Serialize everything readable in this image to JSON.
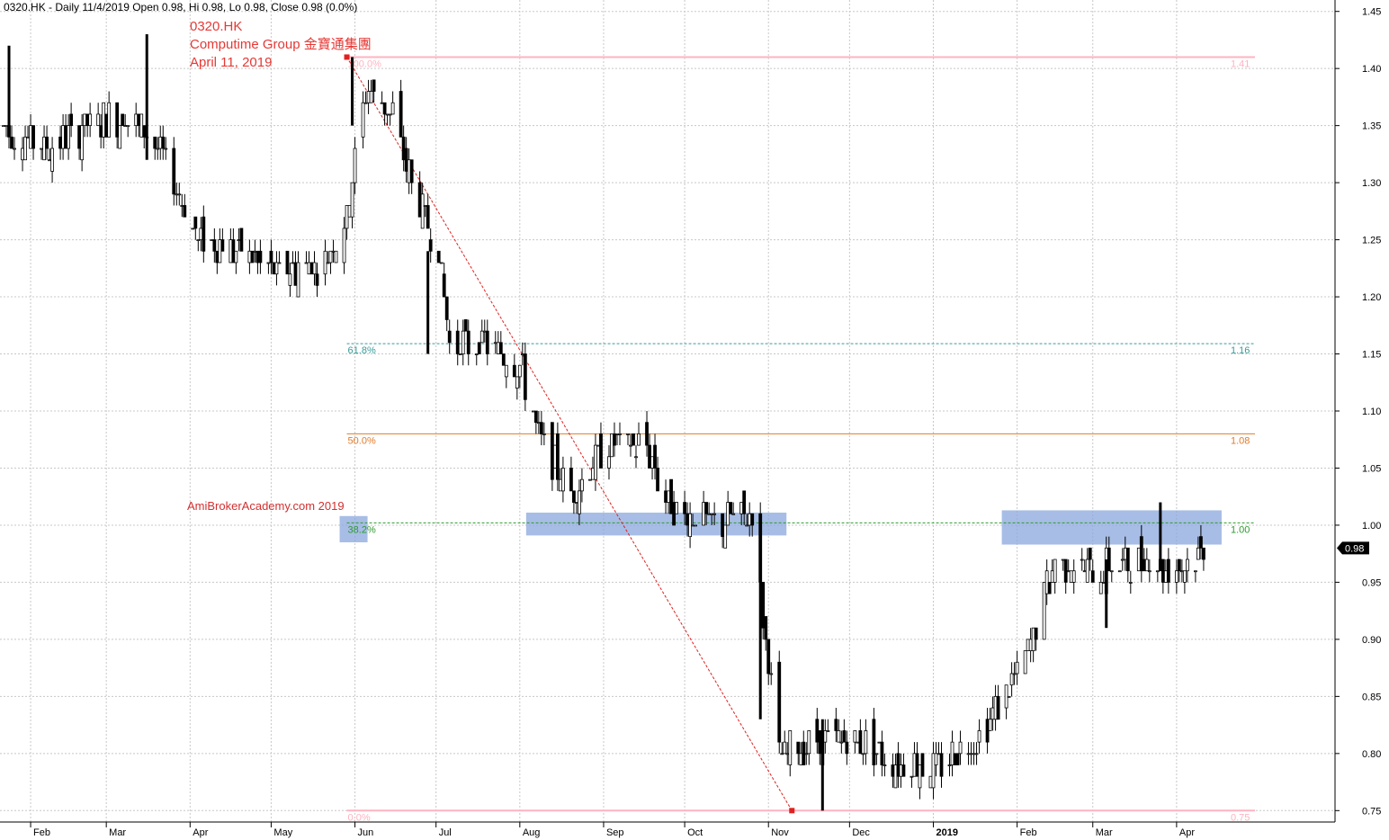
{
  "header": "0320.HK - Daily 11/4/2019 Open 0.98, Hi 0.98, Lo 0.98, Close 0.98 (0.0%)",
  "annotation": {
    "ticker": "0320.HK",
    "company": "Computime Group  金寶通集團",
    "date": "April 11, 2019"
  },
  "watermark": "AmiBrokerAcademy.com  2019",
  "chart_data": {
    "type": "ohlc",
    "y_axis": {
      "side": "right",
      "ylim": [
        0.74,
        1.46
      ],
      "ticks": [
        "1.45",
        "1.40",
        "1.35",
        "1.30",
        "1.25",
        "1.20",
        "1.15",
        "1.10",
        "1.05",
        "1.00",
        "0.95",
        "0.90",
        "0.85",
        "0.80",
        "0.75"
      ]
    },
    "x_axis": {
      "tick_labels": [
        "Feb",
        "Mar",
        "Apr",
        "May",
        "Jun",
        "Jul",
        "Aug",
        "Sep",
        "Oct",
        "Nov",
        "Dec",
        "2019",
        "Feb",
        "Mar",
        "Apr"
      ],
      "bold_labels": [
        "2019"
      ],
      "start_date": "2018-01-22",
      "end_date": "2019-04-11"
    },
    "grid": true,
    "last_price": "0.98",
    "fibonacci": {
      "from": {
        "date": "2018-05-29",
        "price": 1.41
      },
      "to": {
        "date": "2018-11-05",
        "price": 0.75
      },
      "levels": [
        {
          "pct": "100.0%",
          "value": "1.41",
          "price": 1.41,
          "color": "#ffb3c1"
        },
        {
          "pct": "61.8%",
          "value": "1.16",
          "price": 1.159,
          "color": "#3a9a9a"
        },
        {
          "pct": "50.0%",
          "value": "1.08",
          "price": 1.08,
          "color": "#e07b2a"
        },
        {
          "pct": "38.2%",
          "value": "1.00",
          "price": 1.002,
          "color": "#2e9a2e"
        },
        {
          "pct": "0.0%",
          "value": "0.75",
          "price": 0.75,
          "color": "#ffb3c1"
        }
      ]
    },
    "support_zones": [
      {
        "start": "2018-05-29",
        "end": "2018-06-03",
        "low": 0.985,
        "high": 1.008
      },
      {
        "start": "2018-08-06",
        "end": "2018-11-05",
        "low": 0.991,
        "high": 1.011
      },
      {
        "start": "2019-01-29",
        "end": "2019-04-15",
        "low": 0.983,
        "high": 1.013
      }
    ],
    "segments": [
      {
        "date": "2018-01-22",
        "price": 1.35
      },
      {
        "date": "2018-02-06",
        "price": 1.33
      },
      {
        "date": "2018-02-21",
        "price": 1.35
      },
      {
        "date": "2018-03-08",
        "price": 1.36
      },
      {
        "date": "2018-03-20",
        "price": 1.33
      },
      {
        "date": "2018-04-04",
        "price": 1.25
      },
      {
        "date": "2018-04-19",
        "price": 1.24
      },
      {
        "date": "2018-05-04",
        "price": 1.22
      },
      {
        "date": "2018-05-20",
        "price": 1.23
      },
      {
        "date": "2018-05-29",
        "price": 1.27
      },
      {
        "date": "2018-06-05",
        "price": 1.38
      },
      {
        "date": "2018-06-15",
        "price": 1.36
      },
      {
        "date": "2018-06-22",
        "price": 1.3
      },
      {
        "date": "2018-07-02",
        "price": 1.24
      },
      {
        "date": "2018-07-06",
        "price": 1.16
      },
      {
        "date": "2018-07-20",
        "price": 1.16
      },
      {
        "date": "2018-08-01",
        "price": 1.14
      },
      {
        "date": "2018-08-08",
        "price": 1.08
      },
      {
        "date": "2018-08-20",
        "price": 1.03
      },
      {
        "date": "2018-09-03",
        "price": 1.07
      },
      {
        "date": "2018-09-17",
        "price": 1.07
      },
      {
        "date": "2018-09-24",
        "price": 1.02
      },
      {
        "date": "2018-10-10",
        "price": 1.0
      },
      {
        "date": "2018-10-26",
        "price": 1.01
      },
      {
        "date": "2018-10-31",
        "price": 0.9
      },
      {
        "date": "2018-11-05",
        "price": 0.8
      },
      {
        "date": "2018-11-20",
        "price": 0.81
      },
      {
        "date": "2018-12-05",
        "price": 0.81
      },
      {
        "date": "2018-12-20",
        "price": 0.79
      },
      {
        "date": "2019-01-02",
        "price": 0.79
      },
      {
        "date": "2019-01-15",
        "price": 0.81
      },
      {
        "date": "2019-01-25",
        "price": 0.84
      },
      {
        "date": "2019-02-01",
        "price": 0.87
      },
      {
        "date": "2019-02-08",
        "price": 0.91
      },
      {
        "date": "2019-02-15",
        "price": 0.97
      },
      {
        "date": "2019-03-01",
        "price": 0.96
      },
      {
        "date": "2019-03-20",
        "price": 0.97
      },
      {
        "date": "2019-04-01",
        "price": 0.96
      },
      {
        "date": "2019-04-11",
        "price": 0.98
      }
    ],
    "spikes": [
      {
        "date": "2018-01-24",
        "high": 1.42,
        "low": 1.34
      },
      {
        "date": "2018-03-16",
        "high": 1.43,
        "low": 1.32
      },
      {
        "date": "2018-05-31",
        "high": 1.41,
        "low": 1.35
      },
      {
        "date": "2018-06-28",
        "high": 1.24,
        "low": 1.15
      },
      {
        "date": "2018-10-29",
        "high": 0.95,
        "low": 0.83
      },
      {
        "date": "2018-11-21",
        "high": 0.83,
        "low": 0.75
      },
      {
        "date": "2019-03-06",
        "high": 0.97,
        "low": 0.91
      },
      {
        "date": "2019-03-26",
        "high": 1.02,
        "low": 0.96
      }
    ]
  }
}
